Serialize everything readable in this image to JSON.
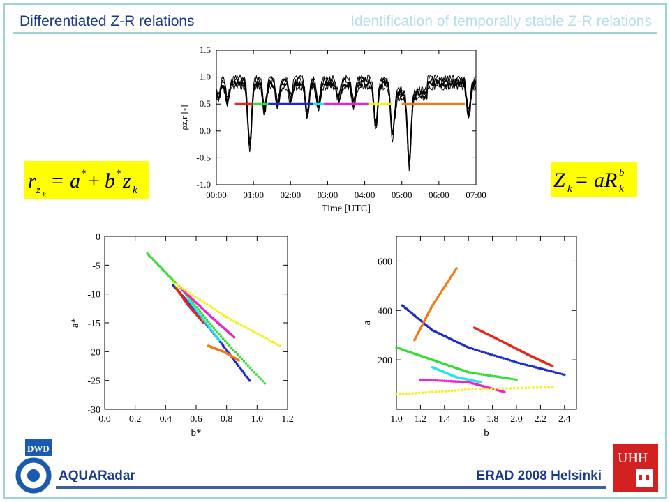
{
  "header": {
    "title_left": "Differentiated Z-R relations",
    "title_right": "Identification of temporally stable Z-R relations"
  },
  "footer": {
    "left": "AQUARadar",
    "right": "ERAD 2008 Helsinki"
  },
  "logos": {
    "left_text": "DWD",
    "right_text": "UHH"
  },
  "equations": {
    "left": "r_zk = a* + b* z_k",
    "right": "Z_k = a R_k^b"
  },
  "colors": {
    "accent_line": "#9bd3d6",
    "title": "#1a3a8c",
    "eq_bg": "#ffff00",
    "red": "#e8231a",
    "green": "#33dd33",
    "blue": "#1a2ad0",
    "cyan": "#22e5f0",
    "magenta": "#ee22cc",
    "yellow": "#f2f216",
    "orange": "#f07a10"
  },
  "chart_data": [
    {
      "type": "line",
      "xlabel": "Time [UTC]",
      "ylabel": "ρz,r [-]",
      "xlim": [
        0,
        7
      ],
      "ylim": [
        -1.0,
        1.5
      ],
      "xticks": [
        "00:00",
        "01:00",
        "02:00",
        "03:00",
        "04:00",
        "05:00",
        "06:00",
        "07:00"
      ],
      "yticks": [
        "1.5",
        "1.0",
        "0.5",
        "0.0",
        "-0.5",
        "-1.0"
      ],
      "segments": [
        {
          "color": "red",
          "x": [
            0.5,
            1.0
          ],
          "y": 0.5
        },
        {
          "color": "green",
          "x": [
            1.0,
            1.4
          ],
          "y": 0.5
        },
        {
          "color": "blue",
          "x": [
            1.4,
            2.6
          ],
          "y": 0.5
        },
        {
          "color": "cyan",
          "x": [
            2.6,
            2.9
          ],
          "y": 0.5
        },
        {
          "color": "magenta",
          "x": [
            2.9,
            4.1
          ],
          "y": 0.5
        },
        {
          "color": "yellow",
          "x": [
            4.1,
            4.75
          ],
          "y": 0.5
        },
        {
          "color": "orange",
          "x": [
            5.0,
            6.7
          ],
          "y": 0.5
        }
      ]
    },
    {
      "type": "scatter",
      "xlabel": "b*",
      "ylabel": "a*",
      "xlim": [
        0.0,
        1.2
      ],
      "ylim": [
        -30,
        0
      ],
      "xticks": [
        "0.0",
        "0.2",
        "0.4",
        "0.6",
        "0.8",
        "1.0",
        "1.2"
      ],
      "yticks": [
        "0",
        "-5",
        "-10",
        "-15",
        "-20",
        "-25",
        "-30"
      ],
      "series": [
        {
          "color": "green",
          "x": [
            0.28,
            0.5,
            0.75,
            1.05
          ],
          "y": [
            -3,
            -9,
            -17,
            -25.5
          ]
        },
        {
          "color": "blue",
          "x": [
            0.45,
            0.6,
            0.75,
            0.95
          ],
          "y": [
            -8.5,
            -13,
            -18,
            -25
          ]
        },
        {
          "color": "red",
          "x": [
            0.47,
            0.55,
            0.65
          ],
          "y": [
            -9,
            -12,
            -15
          ]
        },
        {
          "color": "magenta",
          "x": [
            0.5,
            0.7,
            0.85
          ],
          "y": [
            -9,
            -14,
            -17.5
          ]
        },
        {
          "color": "yellow",
          "x": [
            0.45,
            0.8,
            1.15
          ],
          "y": [
            -8,
            -14,
            -19
          ]
        },
        {
          "color": "cyan",
          "x": [
            0.55,
            0.75
          ],
          "y": [
            -11,
            -18
          ]
        },
        {
          "color": "orange",
          "x": [
            0.68,
            0.78,
            0.88
          ],
          "y": [
            -19,
            -20,
            -21.5
          ]
        }
      ]
    },
    {
      "type": "scatter",
      "xlabel": "b",
      "ylabel": "a",
      "xlim": [
        1.0,
        2.5
      ],
      "ylim": [
        0,
        700
      ],
      "xticks": [
        "1.0",
        "1.2",
        "1.4",
        "1.6",
        "1.8",
        "2.0",
        "2.2",
        "2.4"
      ],
      "yticks": [
        "200",
        "400",
        "600"
      ],
      "series": [
        {
          "color": "red",
          "x": [
            1.65,
            1.9,
            2.1,
            2.3
          ],
          "y": [
            330,
            270,
            220,
            175
          ]
        },
        {
          "color": "blue",
          "x": [
            1.05,
            1.3,
            1.6,
            2.0,
            2.4
          ],
          "y": [
            420,
            320,
            250,
            190,
            140
          ]
        },
        {
          "color": "green",
          "x": [
            1.0,
            1.3,
            1.6,
            2.0
          ],
          "y": [
            250,
            200,
            150,
            120
          ]
        },
        {
          "color": "orange",
          "x": [
            1.15,
            1.3,
            1.5
          ],
          "y": [
            280,
            420,
            570
          ]
        },
        {
          "color": "cyan",
          "x": [
            1.3,
            1.5,
            1.7
          ],
          "y": [
            170,
            130,
            110
          ]
        },
        {
          "color": "magenta",
          "x": [
            1.2,
            1.6,
            1.9
          ],
          "y": [
            120,
            110,
            70
          ]
        },
        {
          "color": "yellow",
          "x": [
            1.0,
            1.6,
            2.3
          ],
          "y": [
            60,
            80,
            90
          ]
        }
      ]
    }
  ]
}
